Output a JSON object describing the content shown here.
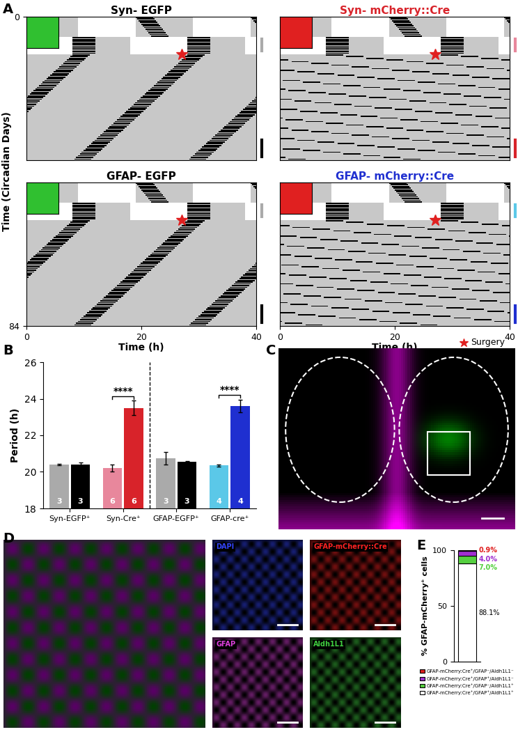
{
  "chart_data": [
    {
      "type": "actogram",
      "panel": "A",
      "title": "Syn- EGFP",
      "color": "#000000",
      "ylabel": "Time (Circadian Days)",
      "xlim": [
        0,
        40
      ],
      "ylim": [
        0,
        84
      ],
      "xticks": [],
      "yticks": [
        0
      ],
      "plot_period": 20,
      "light": [
        [
          0,
          12,
          9,
          19
        ],
        [
          0,
          12,
          29,
          39
        ],
        [
          12,
          22,
          0,
          8
        ],
        [
          12,
          22,
          18,
          28
        ],
        [
          12,
          22,
          38,
          40
        ]
      ],
      "activity": [
        [
          0,
          12,
          19,
          22,
          3
        ],
        [
          12,
          22,
          8,
          8,
          4
        ],
        [
          22,
          84,
          8,
          -12,
          3
        ]
      ],
      "surgery": [
        22,
        27
      ],
      "marks": [
        {
          "days": [
            13,
            20
          ],
          "color": "#aaaaaa"
        },
        {
          "days": [
            72,
            82
          ],
          "color": "#000000"
        }
      ]
    },
    {
      "type": "actogram",
      "title": "Syn- mCherry::Cre",
      "color": "#d8232a",
      "xlim": [
        0,
        40
      ],
      "ylim": [
        0,
        84
      ],
      "xticks": [],
      "yticks": [],
      "plot_period": 20,
      "light": [
        [
          0,
          12,
          9,
          19
        ],
        [
          0,
          12,
          29,
          39
        ],
        [
          12,
          22,
          0,
          8
        ],
        [
          12,
          22,
          18,
          28
        ],
        [
          12,
          22,
          38,
          40
        ]
      ],
      "activity": [
        [
          0,
          12,
          19,
          22,
          3
        ],
        [
          12,
          22,
          8,
          8,
          4
        ],
        [
          22,
          84,
          8,
          225,
          3
        ]
      ],
      "surgery": [
        22,
        27
      ],
      "marks": [
        {
          "days": [
            13,
            20
          ],
          "color": "#e8879c"
        },
        {
          "days": [
            72,
            82
          ],
          "color": "#d8232a"
        }
      ]
    },
    {
      "type": "actogram",
      "title": "GFAP- EGFP",
      "color": "#000000",
      "xlabel": "Time (h)",
      "xlim": [
        0,
        40
      ],
      "ylim": [
        0,
        84
      ],
      "xticks": [
        0,
        20,
        40
      ],
      "yticks": [
        84
      ],
      "plot_period": 20,
      "light": [
        [
          0,
          12,
          9,
          19
        ],
        [
          0,
          12,
          29,
          39
        ],
        [
          12,
          22,
          0,
          8
        ],
        [
          12,
          22,
          18,
          28
        ],
        [
          12,
          22,
          38,
          40
        ]
      ],
      "activity": [
        [
          0,
          12,
          19,
          22,
          3
        ],
        [
          12,
          22,
          8,
          8,
          4
        ],
        [
          22,
          84,
          8,
          -12,
          3
        ]
      ],
      "surgery": [
        22,
        27
      ],
      "marks": [
        {
          "days": [
            13,
            20
          ],
          "color": "#aaaaaa"
        },
        {
          "days": [
            72,
            82
          ],
          "color": "#000000"
        }
      ]
    },
    {
      "type": "actogram",
      "title": "GFAP- mCherry::Cre",
      "color": "#2030d0",
      "xlabel": "Time (h)",
      "surgery_label": "Surgery",
      "xlim": [
        0,
        40
      ],
      "ylim": [
        0,
        84
      ],
      "xticks": [
        0,
        20,
        40
      ],
      "yticks": [],
      "plot_period": 20,
      "light": [
        [
          0,
          12,
          9,
          19
        ],
        [
          0,
          12,
          29,
          39
        ],
        [
          12,
          22,
          0,
          8
        ],
        [
          12,
          22,
          18,
          28
        ],
        [
          12,
          22,
          38,
          40
        ]
      ],
      "activity": [
        [
          0,
          12,
          19,
          22,
          3
        ],
        [
          12,
          22,
          8,
          8,
          4
        ],
        [
          22,
          84,
          8,
          228,
          3
        ]
      ],
      "surgery": [
        22,
        27
      ],
      "marks": [
        {
          "days": [
            13,
            20
          ],
          "color": "#5bc8e8"
        },
        {
          "days": [
            72,
            82
          ],
          "color": "#1f2fd0"
        }
      ]
    },
    {
      "type": "bar",
      "panel": "B",
      "ylabel": "Period (h)",
      "ylim": [
        18,
        26
      ],
      "yticks": [
        18,
        20,
        22,
        24,
        26
      ],
      "categories": [
        "Syn-EGFP⁺",
        "Syn-Cre⁺",
        "GFAP-EGFP⁺",
        "GFAP-cre⁺"
      ],
      "values": [
        [
          20.4,
          20.4
        ],
        [
          20.2,
          23.5
        ],
        [
          20.75,
          20.55
        ],
        [
          20.35,
          23.6
        ]
      ],
      "errors": [
        [
          0.05,
          0.1
        ],
        [
          0.2,
          0.4
        ],
        [
          0.35,
          0.05
        ],
        [
          0.05,
          0.35
        ]
      ],
      "n": [
        [
          3,
          3
        ],
        [
          6,
          6
        ],
        [
          3,
          3
        ],
        [
          4,
          4
        ]
      ],
      "colors": [
        [
          "#aaaaaa",
          "#000000"
        ],
        [
          "#e8879c",
          "#d8232a"
        ],
        [
          "#aaaaaa",
          "#000000"
        ],
        [
          "#5bc8e8",
          "#1f2fd0"
        ]
      ],
      "significance": [
        {
          "group": 1,
          "label": "****"
        },
        {
          "group": 3,
          "label": "****"
        }
      ]
    },
    {
      "type": "image",
      "panel": "C"
    },
    {
      "type": "image",
      "panel": "D",
      "channels": [
        "DAPI",
        "GFAP-mCherry::Cre",
        "GFAP",
        "Aldh1L1"
      ],
      "colors": [
        "#3344ff",
        "#ff2222",
        "#e040e0",
        "#40d040"
      ]
    },
    {
      "type": "bar",
      "panel": "E",
      "stacked": true,
      "data_labels": true,
      "legend": "upper center",
      "ylabel": "% GFAP-mCherry⁺ cells",
      "ylim": [
        0,
        100
      ],
      "yticks": [
        0,
        50,
        100
      ],
      "categories": [
        null
      ],
      "series": [
        {
          "name": "GFAP-mCherry:Cre⁺/GFAP⁺/Aldh1L1⁺",
          "color": "#ffffff",
          "values": [
            88.1
          ],
          "value_labels": [
            "88.1%"
          ]
        },
        {
          "name": "GFAP-mCherry:Cre⁺/GFAP⁻/Aldh1L1⁺",
          "color": "#55d040",
          "values": [
            7.0
          ],
          "value_labels": [
            "7.0%"
          ]
        },
        {
          "name": "GFAP-mCherry:Cre⁺/GFAP⁺/Aldh1L1⁻",
          "color": "#a030d0",
          "values": [
            4.0
          ],
          "value_labels": [
            "4.0%"
          ]
        },
        {
          "name": "GFAP-mCherry:Cre⁺/GFAP⁻/Aldh1L1⁻",
          "color": "#e02020",
          "values": [
            0.9
          ],
          "value_labels": [
            "0.9%"
          ]
        }
      ]
    }
  ]
}
